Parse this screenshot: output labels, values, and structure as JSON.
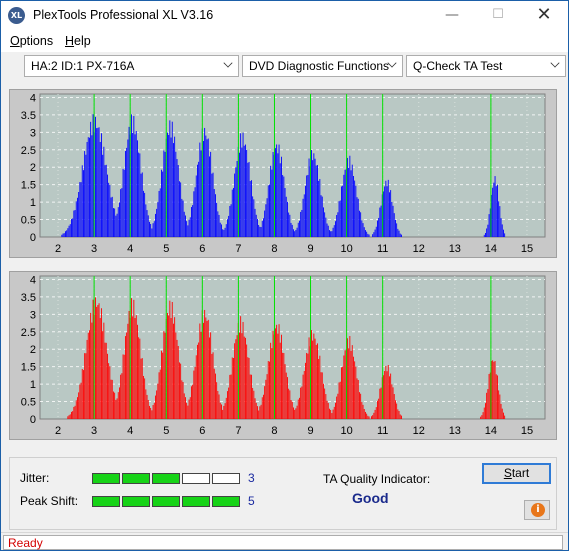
{
  "window": {
    "title": "PlexTools Professional XL V3.16",
    "icon_label": "XL",
    "controls": {
      "minimize": "—",
      "maximize": "☐",
      "close": "✕"
    }
  },
  "menu": {
    "options": {
      "accel": "O",
      "rest": "ptions"
    },
    "help": {
      "accel": "H",
      "rest": "elp"
    }
  },
  "toolbar": {
    "drive": "HA:2 ID:1  PX-716A",
    "function": "DVD Diagnostic Functions",
    "test": "Q-Check TA Test"
  },
  "charts": {
    "colors": {
      "top": "#0000ff",
      "bottom": "#ff0000",
      "green": "#00e000",
      "plot_bg": "#b9c8c4",
      "panel_bg": "#c8c8c8"
    },
    "y_ticks": [
      "4",
      "3.5",
      "3",
      "2.5",
      "2",
      "1.5",
      "1",
      "0.5",
      "0"
    ],
    "x_ticks": [
      "2",
      "3",
      "4",
      "5",
      "6",
      "7",
      "8",
      "9",
      "10",
      "11",
      "12",
      "13",
      "14",
      "15"
    ]
  },
  "chart_data": [
    {
      "type": "bar",
      "name": "top",
      "xlim": [
        1.5,
        15.5
      ],
      "ylim": [
        0,
        4.1
      ],
      "green_lines": [
        3,
        4,
        5,
        6,
        7,
        8,
        9,
        10,
        11,
        14
      ],
      "peaks": [
        {
          "center": 3.0,
          "height": 3.55,
          "width": 0.85
        },
        {
          "center": 4.05,
          "height": 3.55,
          "width": 0.62
        },
        {
          "center": 5.1,
          "height": 3.4,
          "width": 0.6
        },
        {
          "center": 6.05,
          "height": 3.25,
          "width": 0.58
        },
        {
          "center": 7.1,
          "height": 3.05,
          "width": 0.58
        },
        {
          "center": 8.05,
          "height": 2.8,
          "width": 0.55
        },
        {
          "center": 9.05,
          "height": 2.55,
          "width": 0.55
        },
        {
          "center": 10.05,
          "height": 2.35,
          "width": 0.55
        },
        {
          "center": 11.1,
          "height": 1.7,
          "width": 0.42
        },
        {
          "center": 14.1,
          "height": 1.8,
          "width": 0.3
        }
      ]
    },
    {
      "type": "bar",
      "name": "bottom",
      "xlim": [
        1.5,
        15.5
      ],
      "ylim": [
        0,
        4.1
      ],
      "green_lines": [
        3,
        4,
        5,
        6,
        7,
        8,
        9,
        10,
        11,
        14
      ],
      "peaks": [
        {
          "center": 3.05,
          "height": 3.6,
          "width": 0.75
        },
        {
          "center": 4.05,
          "height": 3.5,
          "width": 0.6
        },
        {
          "center": 5.1,
          "height": 3.45,
          "width": 0.6
        },
        {
          "center": 6.05,
          "height": 3.25,
          "width": 0.6
        },
        {
          "center": 7.05,
          "height": 2.95,
          "width": 0.6
        },
        {
          "center": 8.05,
          "height": 2.85,
          "width": 0.6
        },
        {
          "center": 9.05,
          "height": 2.6,
          "width": 0.6
        },
        {
          "center": 10.05,
          "height": 2.4,
          "width": 0.55
        },
        {
          "center": 11.1,
          "height": 1.6,
          "width": 0.45
        },
        {
          "center": 14.05,
          "height": 1.85,
          "width": 0.35
        }
      ]
    }
  ],
  "results": {
    "jitter_label": "Jitter:",
    "jitter_value": "3",
    "jitter_level": 3,
    "peak_label": "Peak Shift:",
    "peak_value": "5",
    "peak_level": 5,
    "ta_label": "TA Quality Indicator:",
    "ta_value": "Good",
    "start": {
      "accel": "S",
      "rest": "tart"
    },
    "info_icon": "i"
  },
  "status": {
    "text": "Ready"
  }
}
